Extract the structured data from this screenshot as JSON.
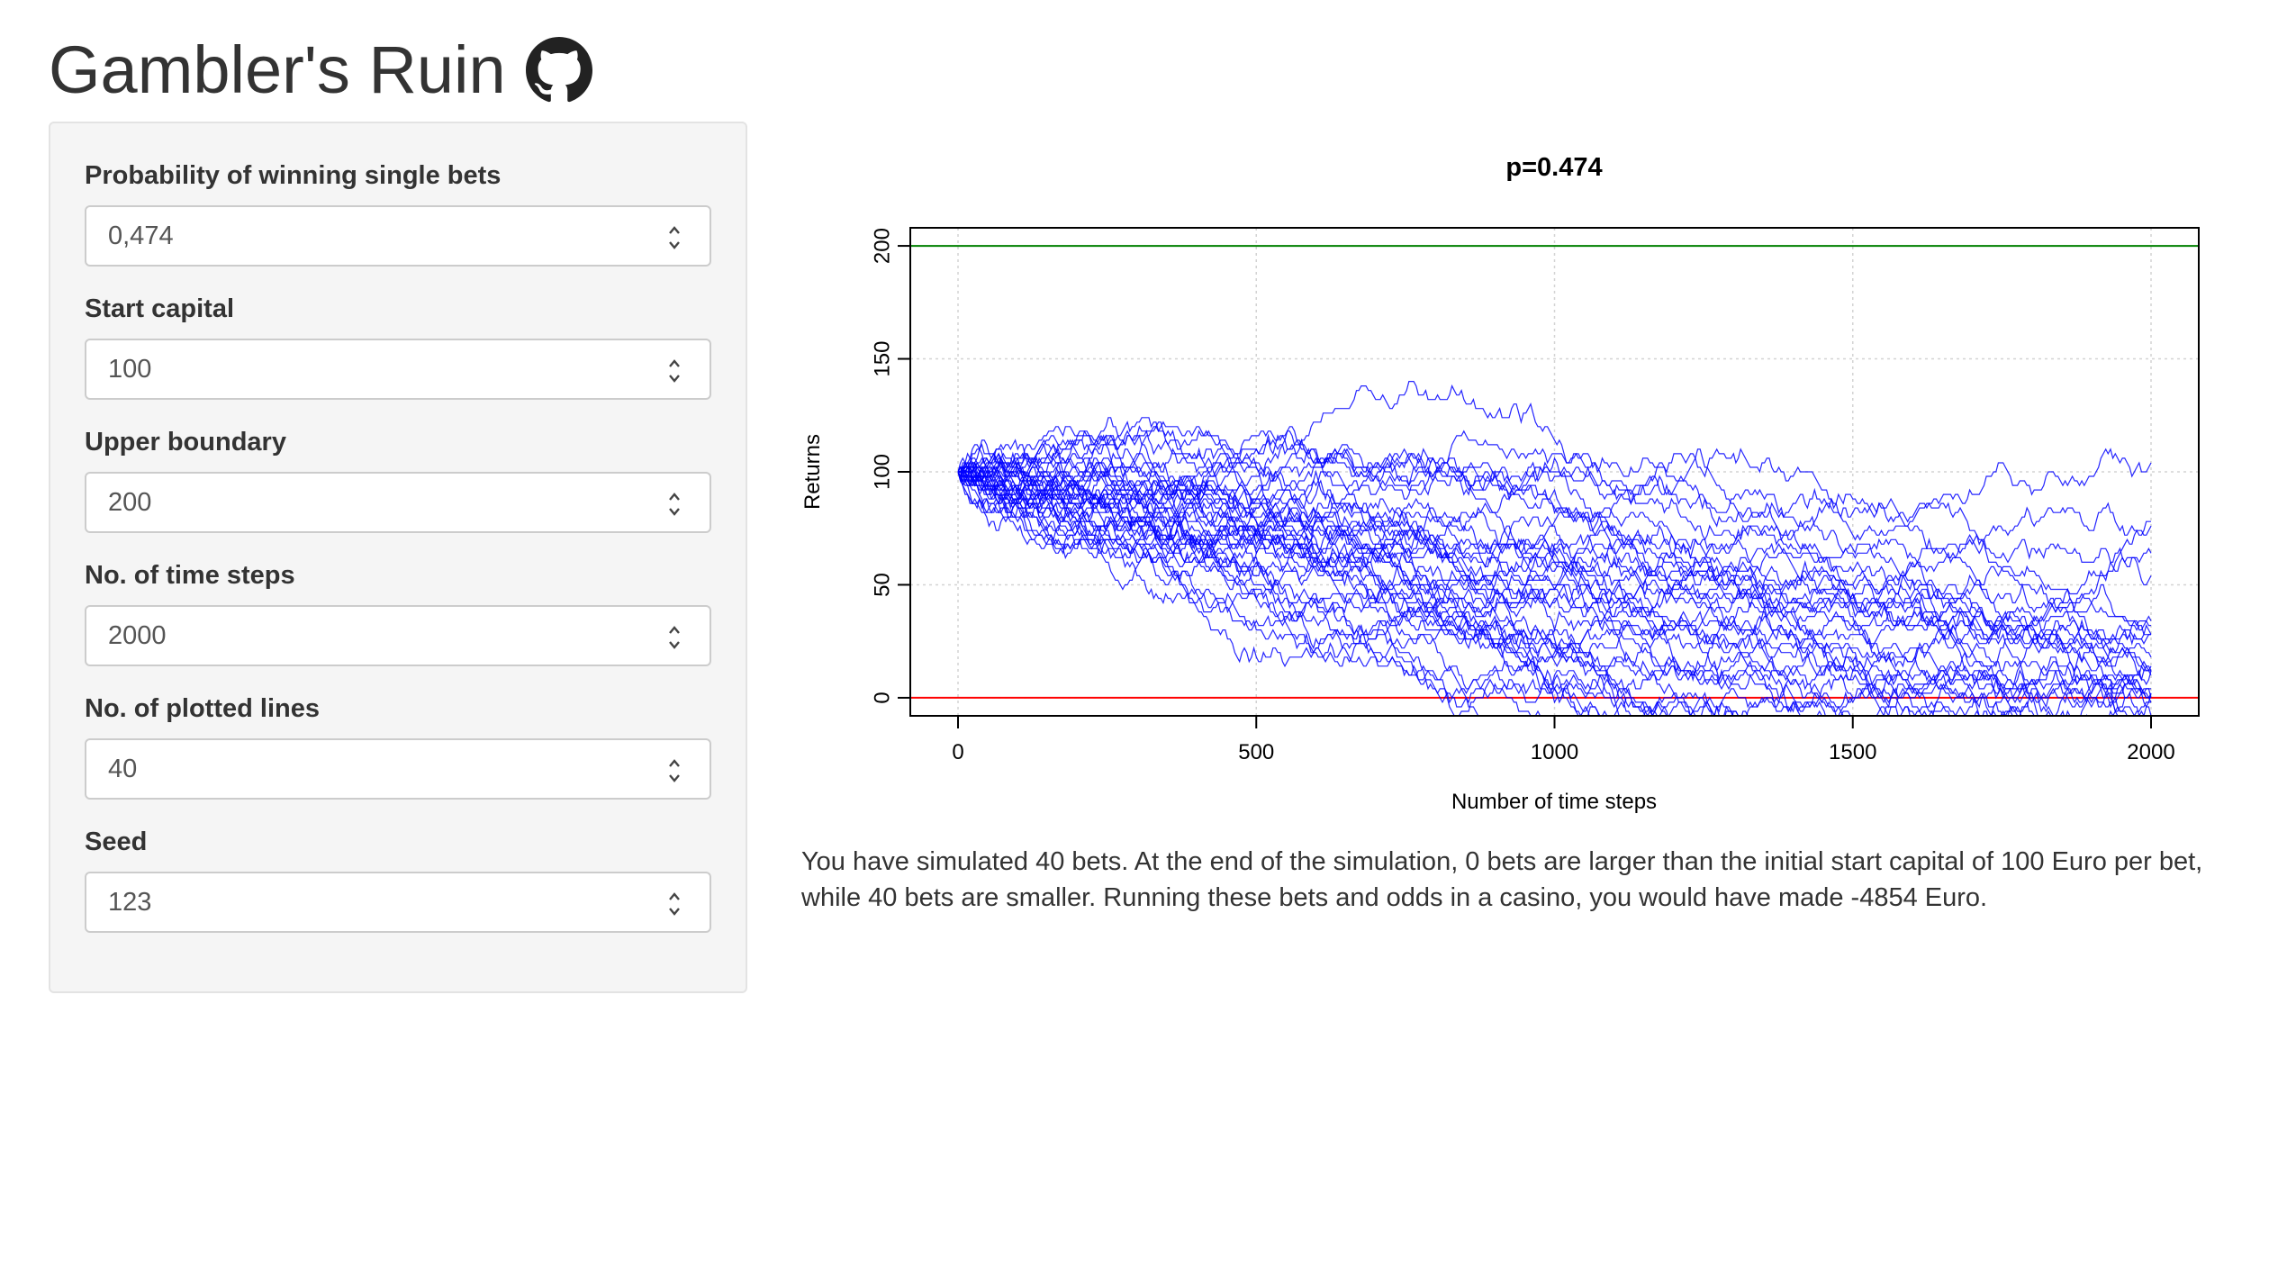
{
  "app": {
    "title": "Gambler's Ruin",
    "github_icon": "github-icon"
  },
  "inputs": [
    {
      "label": "Probability of winning single bets",
      "value": "0,474"
    },
    {
      "label": "Start capital",
      "value": "100"
    },
    {
      "label": "Upper boundary",
      "value": "200"
    },
    {
      "label": "No. of time steps",
      "value": "2000"
    },
    {
      "label": "No. of plotted lines",
      "value": "40"
    },
    {
      "label": "Seed",
      "value": "123"
    }
  ],
  "summary": "You have simulated 40 bets. At the end of the simulation, 0 bets are larger than the initial start capital of 100 Euro per bet, while 40 bets are smaller. Running these bets and odds in a casino, you would have made -4854 Euro.",
  "chart_data": {
    "type": "line",
    "title": "p=0.474",
    "xlabel": "Number of time steps",
    "ylabel": "Returns",
    "xlim": [
      -80,
      2080
    ],
    "ylim": [
      -8,
      208
    ],
    "x_ticks": [
      0,
      500,
      1000,
      1500,
      2000
    ],
    "y_ticks": [
      0,
      50,
      100,
      150,
      200
    ],
    "grid": true,
    "series_count": 40,
    "steps": 2000,
    "start": 100,
    "p": 0.474,
    "seed": 123,
    "line_color": "#0000ff",
    "reference_lines": [
      {
        "y": 200,
        "color": "#008000"
      },
      {
        "y": 0,
        "color": "#ff0000"
      }
    ]
  }
}
